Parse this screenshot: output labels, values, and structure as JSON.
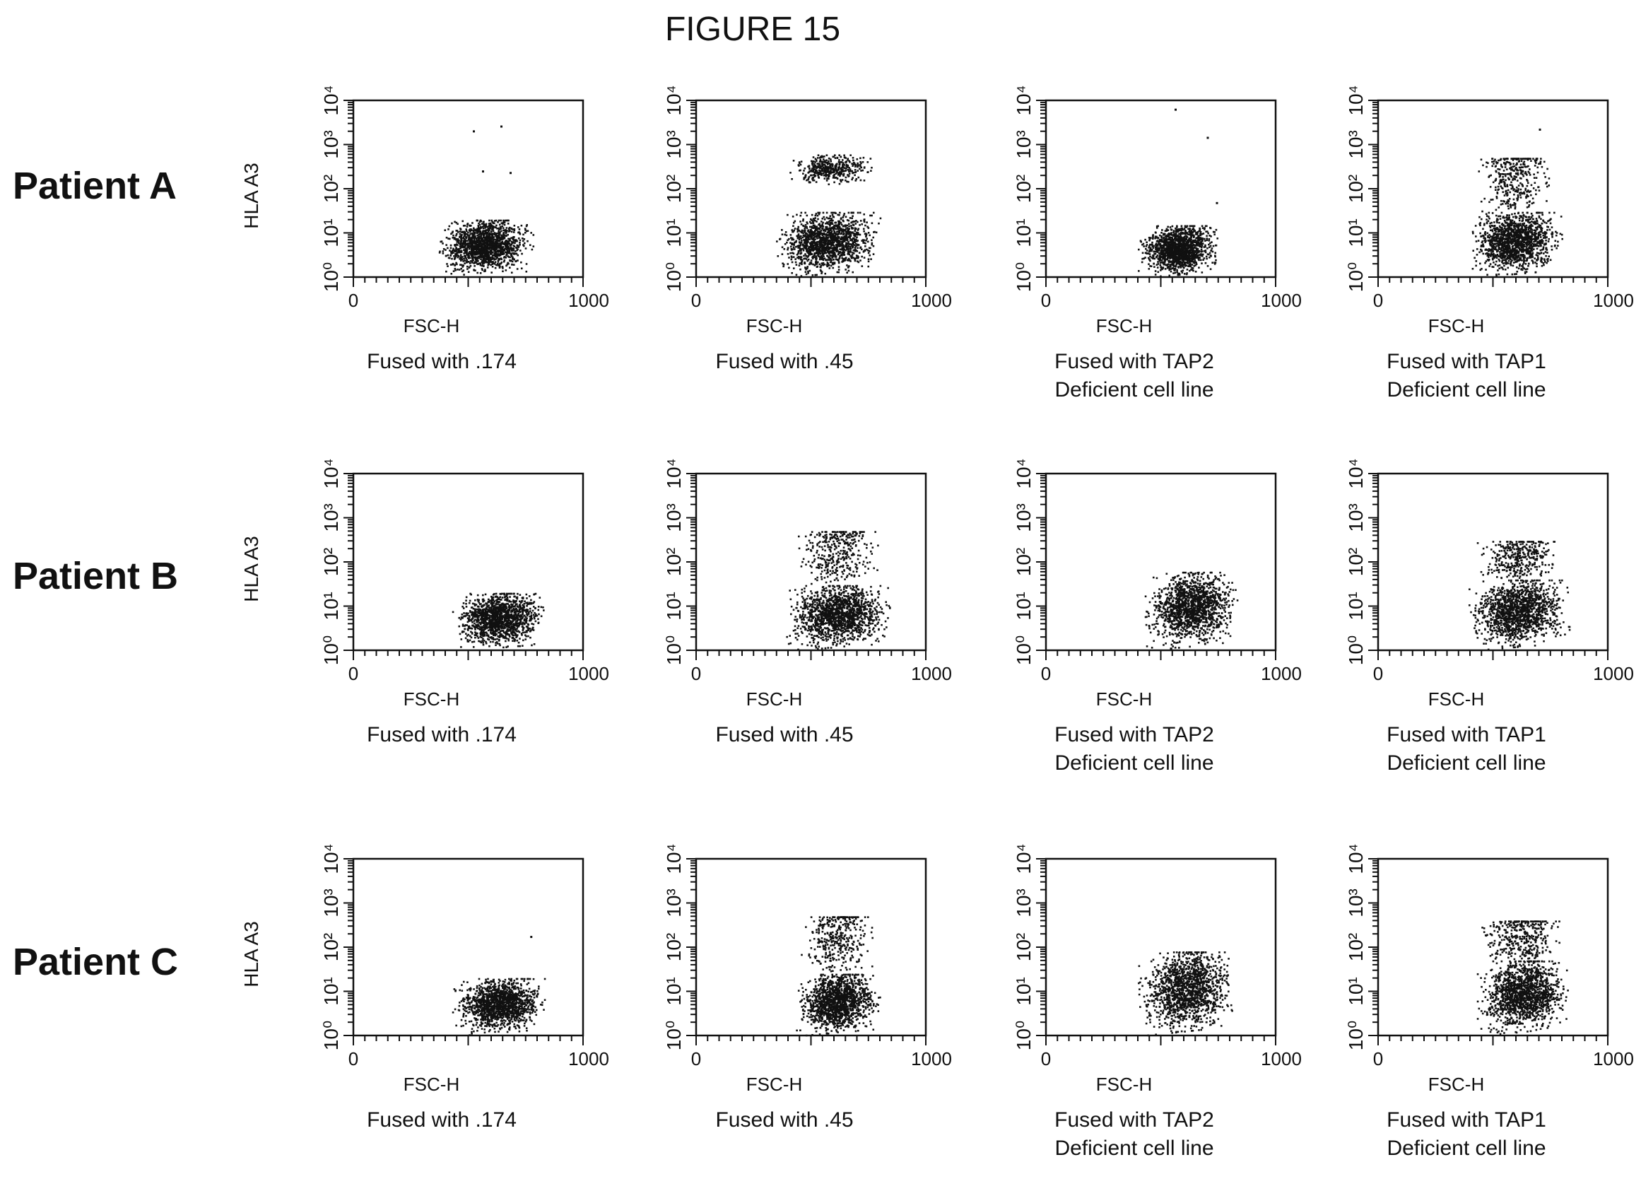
{
  "figure_title": "FIGURE 15",
  "rows": [
    {
      "label": "Patient A"
    },
    {
      "label": "Patient B"
    },
    {
      "label": "Patient C"
    }
  ],
  "chart_data": [
    {
      "type": "scatter",
      "row": "Patient A",
      "caption": [
        "Fused with .174"
      ],
      "xlabel": "FSC-H",
      "ylabel": "HLA A3",
      "xlim": [
        0,
        1000
      ],
      "ylim": [
        1,
        10000
      ],
      "yscale": "log",
      "x_ticks": [
        "0",
        "1000"
      ],
      "y_ticks": [
        "10⁰",
        "10¹",
        "10²",
        "10³",
        "10⁴"
      ],
      "populations": [
        {
          "x_range": [
            360,
            780
          ],
          "y_range": [
            1,
            20
          ],
          "density": "dense"
        }
      ],
      "outliers": [
        {
          "x": 520,
          "y": 2100
        },
        {
          "x": 640,
          "y": 2700
        },
        {
          "x": 560,
          "y": 260
        },
        {
          "x": 680,
          "y": 240
        }
      ]
    },
    {
      "type": "scatter",
      "row": "Patient A",
      "caption": [
        "Fused with .45"
      ],
      "xlabel": "FSC-H",
      "ylabel": "HLA A3",
      "xlim": [
        0,
        1000
      ],
      "ylim": [
        1,
        10000
      ],
      "yscale": "log",
      "x_ticks": [
        "0",
        "1000"
      ],
      "y_ticks": [
        "10⁰",
        "10¹",
        "10²",
        "10³",
        "10⁴"
      ],
      "populations": [
        {
          "x_range": [
            340,
            800
          ],
          "y_range": [
            1,
            30
          ],
          "density": "dense"
        },
        {
          "x_range": [
            390,
            770
          ],
          "y_range": [
            120,
            600
          ],
          "density": "medium"
        }
      ],
      "outliers": []
    },
    {
      "type": "scatter",
      "row": "Patient A",
      "caption": [
        "Fused with TAP2",
        "Deficient cell line"
      ],
      "xlabel": "FSC-H",
      "ylabel": "HLA A3",
      "xlim": [
        0,
        1000
      ],
      "ylim": [
        1,
        10000
      ],
      "yscale": "log",
      "x_ticks": [
        "0",
        "1000"
      ],
      "y_ticks": [
        "10⁰",
        "10¹",
        "10²",
        "10³",
        "10⁴"
      ],
      "populations": [
        {
          "x_range": [
            400,
            750
          ],
          "y_range": [
            1,
            15
          ],
          "density": "dense"
        }
      ],
      "outliers": [
        {
          "x": 560,
          "y": 6500
        },
        {
          "x": 700,
          "y": 1500
        },
        {
          "x": 740,
          "y": 50
        }
      ]
    },
    {
      "type": "scatter",
      "row": "Patient A",
      "caption": [
        "Fused with TAP1",
        "Deficient cell line"
      ],
      "xlabel": "FSC-H",
      "ylabel": "HLA A3",
      "xlim": [
        0,
        1000
      ],
      "ylim": [
        1,
        10000
      ],
      "yscale": "log",
      "x_ticks": [
        "0",
        "1000"
      ],
      "y_ticks": [
        "10⁰",
        "10¹",
        "10²",
        "10³",
        "10⁴"
      ],
      "populations": [
        {
          "x_range": [
            390,
            800
          ],
          "y_range": [
            1,
            30
          ],
          "density": "dense"
        },
        {
          "x_range": [
            420,
            760
          ],
          "y_range": [
            30,
            500
          ],
          "density": "sparse"
        }
      ],
      "outliers": [
        {
          "x": 700,
          "y": 2300
        }
      ]
    },
    {
      "type": "scatter",
      "row": "Patient B",
      "caption": [
        "Fused with .174"
      ],
      "xlabel": "FSC-H",
      "ylabel": "HLA A3",
      "xlim": [
        0,
        1000
      ],
      "ylim": [
        1,
        10000
      ],
      "yscale": "log",
      "x_ticks": [
        "0",
        "1000"
      ],
      "y_ticks": [
        "10⁰",
        "10¹",
        "10²",
        "10³",
        "10⁴"
      ],
      "populations": [
        {
          "x_range": [
            430,
            830
          ],
          "y_range": [
            1,
            20
          ],
          "density": "dense"
        }
      ],
      "outliers": []
    },
    {
      "type": "scatter",
      "row": "Patient B",
      "caption": [
        "Fused with .45"
      ],
      "xlabel": "FSC-H",
      "ylabel": "HLA A3",
      "xlim": [
        0,
        1000
      ],
      "ylim": [
        1,
        10000
      ],
      "yscale": "log",
      "x_ticks": [
        "0",
        "1000"
      ],
      "y_ticks": [
        "10⁰",
        "10¹",
        "10²",
        "10³",
        "10⁴"
      ],
      "populations": [
        {
          "x_range": [
            390,
            840
          ],
          "y_range": [
            1,
            30
          ],
          "density": "dense"
        },
        {
          "x_range": [
            420,
            800
          ],
          "y_range": [
            30,
            500
          ],
          "density": "sparse"
        }
      ],
      "outliers": []
    },
    {
      "type": "scatter",
      "row": "Patient B",
      "caption": [
        "Fused with TAP2",
        "Deficient cell line"
      ],
      "xlabel": "FSC-H",
      "ylabel": "HLA A3",
      "xlim": [
        0,
        1000
      ],
      "ylim": [
        1,
        10000
      ],
      "yscale": "log",
      "x_ticks": [
        "0",
        "1000"
      ],
      "y_ticks": [
        "10⁰",
        "10¹",
        "10²",
        "10³",
        "10⁴"
      ],
      "populations": [
        {
          "x_range": [
            430,
            830
          ],
          "y_range": [
            1,
            60
          ],
          "density": "dense"
        }
      ],
      "outliers": []
    },
    {
      "type": "scatter",
      "row": "Patient B",
      "caption": [
        "Fused with TAP1",
        "Deficient cell line"
      ],
      "xlabel": "FSC-H",
      "ylabel": "HLA A3",
      "xlim": [
        0,
        1000
      ],
      "ylim": [
        1,
        10000
      ],
      "yscale": "log",
      "x_ticks": [
        "0",
        "1000"
      ],
      "y_ticks": [
        "10⁰",
        "10¹",
        "10²",
        "10³",
        "10⁴"
      ],
      "populations": [
        {
          "x_range": [
            390,
            830
          ],
          "y_range": [
            1,
            40
          ],
          "density": "dense"
        },
        {
          "x_range": [
            430,
            800
          ],
          "y_range": [
            40,
            300
          ],
          "density": "sparse"
        }
      ],
      "outliers": []
    },
    {
      "type": "scatter",
      "row": "Patient C",
      "caption": [
        "Fused with .174"
      ],
      "xlabel": "FSC-H",
      "ylabel": "HLA A3",
      "xlim": [
        0,
        1000
      ],
      "ylim": [
        1,
        10000
      ],
      "yscale": "log",
      "x_ticks": [
        "0",
        "1000"
      ],
      "y_ticks": [
        "10⁰",
        "10¹",
        "10²",
        "10³",
        "10⁴"
      ],
      "populations": [
        {
          "x_range": [
            430,
            830
          ],
          "y_range": [
            1,
            20
          ],
          "density": "dense"
        }
      ],
      "outliers": [
        {
          "x": 770,
          "y": 180
        }
      ]
    },
    {
      "type": "scatter",
      "row": "Patient C",
      "caption": [
        "Fused with .45"
      ],
      "xlabel": "FSC-H",
      "ylabel": "HLA A3",
      "xlim": [
        0,
        1000
      ],
      "ylim": [
        1,
        10000
      ],
      "yscale": "log",
      "x_ticks": [
        "0",
        "1000"
      ],
      "y_ticks": [
        "10⁰",
        "10¹",
        "10²",
        "10³",
        "10⁴"
      ],
      "populations": [
        {
          "x_range": [
            430,
            800
          ],
          "y_range": [
            1,
            25
          ],
          "density": "dense"
        },
        {
          "x_range": [
            450,
            780
          ],
          "y_range": [
            25,
            500
          ],
          "density": "sparse"
        }
      ],
      "outliers": []
    },
    {
      "type": "scatter",
      "row": "Patient C",
      "caption": [
        "Fused with TAP2",
        "Deficient cell line"
      ],
      "xlabel": "FSC-H",
      "ylabel": "HLA A3",
      "xlim": [
        0,
        1000
      ],
      "ylim": [
        1,
        10000
      ],
      "yscale": "log",
      "x_ticks": [
        "0",
        "1000"
      ],
      "y_ticks": [
        "10⁰",
        "10¹",
        "10²",
        "10³",
        "10⁴"
      ],
      "populations": [
        {
          "x_range": [
            400,
            820
          ],
          "y_range": [
            1,
            80
          ],
          "density": "dense"
        }
      ],
      "outliers": []
    },
    {
      "type": "scatter",
      "row": "Patient C",
      "caption": [
        "Fused with TAP1",
        "Deficient cell line"
      ],
      "xlabel": "FSC-H",
      "ylabel": "HLA A3",
      "xlim": [
        0,
        1000
      ],
      "ylim": [
        1,
        10000
      ],
      "yscale": "log",
      "x_ticks": [
        "0",
        "1000"
      ],
      "y_ticks": [
        "10⁰",
        "10¹",
        "10²",
        "10³",
        "10⁴"
      ],
      "populations": [
        {
          "x_range": [
            430,
            830
          ],
          "y_range": [
            1,
            50
          ],
          "density": "dense"
        },
        {
          "x_range": [
            450,
            800
          ],
          "y_range": [
            50,
            400
          ],
          "density": "sparse"
        }
      ],
      "outliers": []
    }
  ]
}
